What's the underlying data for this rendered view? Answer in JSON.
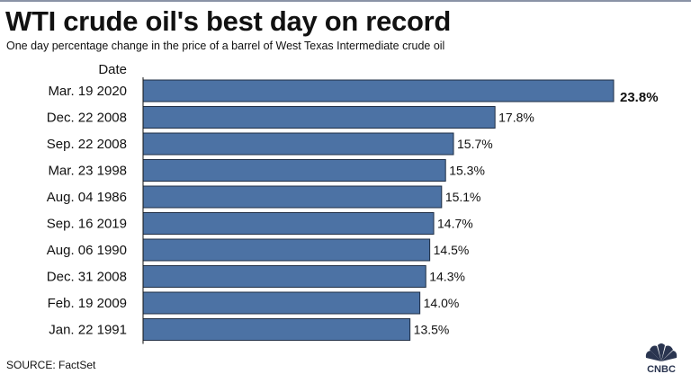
{
  "title": "WTI crude oil's best day on record",
  "subtitle": "One day percentage change in the price of a barrel of West Texas Intermediate crude oil",
  "source": "SOURCE: FactSet",
  "logo_icon": "cnbc-peacock-logo-icon",
  "logo_text": "CNBC",
  "colors": {
    "bar": "#4c72a4",
    "bar_outline": "#1e2d44"
  },
  "chart_data": {
    "type": "bar",
    "orientation": "horizontal",
    "category_header": "Date",
    "categories": [
      "Mar. 19 2020",
      "Dec. 22 2008",
      "Sep. 22 2008",
      "Mar. 23 1998",
      "Aug. 04 1986",
      "Sep. 16 2019",
      "Aug. 06 1990",
      "Dec. 31 2008",
      "Feb. 19 2009",
      "Jan. 22 1991"
    ],
    "values": [
      23.8,
      17.8,
      15.7,
      15.3,
      15.1,
      14.7,
      14.5,
      14.3,
      14.0,
      13.5
    ],
    "value_labels": [
      "23.8%",
      "17.8%",
      "15.7%",
      "15.3%",
      "15.1%",
      "14.7%",
      "14.5%",
      "14.3%",
      "14.0%",
      "13.5%"
    ],
    "xlim": [
      0,
      23.8
    ],
    "grid": false,
    "legend": "none"
  }
}
